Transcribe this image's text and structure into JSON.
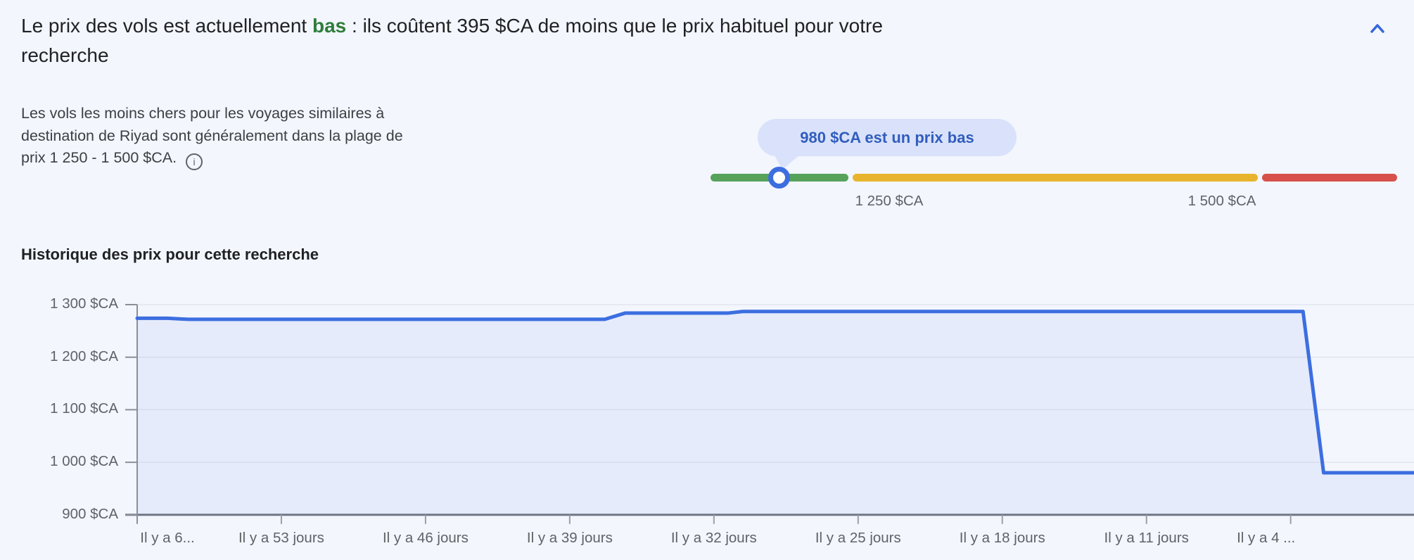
{
  "header": {
    "title_prefix": "Le prix des vols est actuellement ",
    "title_highlight": "bas",
    "title_suffix_line1": " : ils coûtent 395 $CA de moins que le prix habituel pour votre",
    "title_suffix_line2": "recherche"
  },
  "description": {
    "line1": "Les vols les moins chers pour les voyages similaires à",
    "line2": "destination de Riyad sont généralement dans la plage de",
    "line3": "prix 1 250 - 1 500 $CA.",
    "info_icon": "i"
  },
  "price_gauge": {
    "tooltip": "980 $CA est un prix bas",
    "current_price": 980,
    "low_boundary_label": "1 250 $CA",
    "high_boundary_label": "1 500 $CA",
    "segments": [
      {
        "name": "low",
        "color": "#56a25b"
      },
      {
        "name": "typical",
        "color": "#e9b42d"
      },
      {
        "name": "high",
        "color": "#d7504a"
      }
    ],
    "marker_color": "#3c6ee0"
  },
  "history_heading": "Historique des prix pour cette recherche",
  "chart_data": {
    "type": "area",
    "title": "Historique des prix pour cette recherche",
    "x_unit": "jours (il y a)",
    "ylabel": "$CA",
    "ylim": [
      900,
      1300
    ],
    "grid": true,
    "legend": false,
    "line_color": "#3c6ee0",
    "fill_color": "rgba(60,110,224,0.08)",
    "points": [
      {
        "days_ago": 60,
        "price": 1274
      },
      {
        "days_ago": 58.5,
        "price": 1274
      },
      {
        "days_ago": 57.5,
        "price": 1272
      },
      {
        "days_ago": 37.3,
        "price": 1272
      },
      {
        "days_ago": 36.3,
        "price": 1284
      },
      {
        "days_ago": 31.3,
        "price": 1284
      },
      {
        "days_ago": 30.6,
        "price": 1287
      },
      {
        "days_ago": 3.4,
        "price": 1287
      },
      {
        "days_ago": 2.4,
        "price": 980
      },
      {
        "days_ago": -2,
        "price": 980
      }
    ],
    "y_tick_values": [
      1300,
      1200,
      1100,
      1000,
      900
    ],
    "y_tick_labels": [
      "1 300 $CA",
      "1 200 $CA",
      "1 100 $CA",
      "1 000 $CA",
      "900 $CA"
    ],
    "x_tick_days": [
      60,
      53,
      46,
      39,
      32,
      25,
      18,
      11,
      4
    ],
    "x_tick_labels": [
      "Il y a 6...",
      "Il y a 53 jours",
      "Il y a 46 jours",
      "Il y a 39 jours",
      "Il y a 32 jours",
      "Il y a 25 jours",
      "Il y a 18 jours",
      "Il y a 11 jours",
      "Il y a 4 ..."
    ]
  },
  "colors": {
    "background": "#f3f6fd",
    "title_text": "#202124",
    "highlight_green": "#2f7d3b",
    "body_text": "#3c4043",
    "muted_text": "#5f6368",
    "accent_blue": "#3c6ee0",
    "bubble_bg": "#d9e2fa",
    "bubble_text": "#315dbe"
  }
}
